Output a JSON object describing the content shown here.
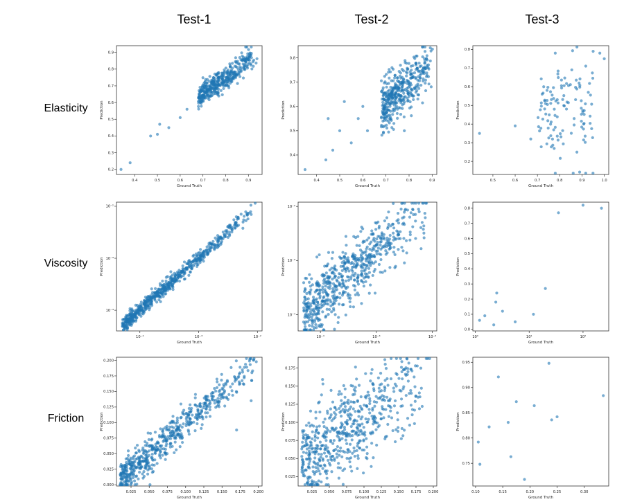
{
  "figure": {
    "columns": [
      "Test-1",
      "Test-2",
      "Test-3"
    ],
    "rows": [
      "Elasticity",
      "Viscosity",
      "Friction"
    ]
  },
  "chart_data": [
    {
      "id": "elasticity-test-1",
      "type": "scatter",
      "title": "Test-1 / Elasticity",
      "xlabel": "Ground Truth",
      "ylabel": "Prediction",
      "xscale": "linear",
      "yscale": "linear",
      "xlim": [
        0.32,
        0.96
      ],
      "ylim": [
        0.17,
        0.94
      ],
      "xticks": [
        0.4,
        0.5,
        0.6,
        0.7,
        0.8,
        0.9
      ],
      "xtick_labels": [
        "0.4",
        "0.5",
        "0.6",
        "0.7",
        "0.8",
        "0.9"
      ],
      "yticks": [
        0.2,
        0.3,
        0.4,
        0.5,
        0.6,
        0.7,
        0.8,
        0.9
      ],
      "ytick_labels": [
        "0.2",
        "0.3",
        "0.4",
        "0.5",
        "0.6",
        "0.7",
        "0.8",
        "0.9"
      ],
      "color": "#1f77b4",
      "explicit_points": [
        [
          0.34,
          0.2
        ],
        [
          0.38,
          0.24
        ],
        [
          0.47,
          0.4
        ],
        [
          0.5,
          0.41
        ],
        [
          0.51,
          0.47
        ],
        [
          0.55,
          0.45
        ],
        [
          0.6,
          0.51
        ],
        [
          0.63,
          0.56
        ]
      ],
      "generated": {
        "n": 420,
        "x_range": [
          0.68,
          0.94
        ],
        "slope": 1.0,
        "intercept": -0.05,
        "noise": 0.035,
        "seed": 11
      }
    },
    {
      "id": "elasticity-test-2",
      "type": "scatter",
      "title": "Test-2 / Elasticity",
      "xlabel": "Ground Truth",
      "ylabel": "Prediction",
      "xscale": "linear",
      "yscale": "linear",
      "xlim": [
        0.32,
        0.92
      ],
      "ylim": [
        0.32,
        0.85
      ],
      "xticks": [
        0.4,
        0.5,
        0.6,
        0.7,
        0.8,
        0.9
      ],
      "xtick_labels": [
        "0.4",
        "0.5",
        "0.6",
        "0.7",
        "0.8",
        "0.9"
      ],
      "yticks": [
        0.4,
        0.5,
        0.6,
        0.7,
        0.8
      ],
      "ytick_labels": [
        "0.4",
        "0.5",
        "0.6",
        "0.7",
        "0.8"
      ],
      "color": "#1f77b4",
      "explicit_points": [
        [
          0.35,
          0.34
        ],
        [
          0.44,
          0.38
        ],
        [
          0.47,
          0.42
        ],
        [
          0.45,
          0.55
        ],
        [
          0.52,
          0.62
        ],
        [
          0.5,
          0.5
        ],
        [
          0.55,
          0.45
        ],
        [
          0.6,
          0.6
        ],
        [
          0.58,
          0.55
        ],
        [
          0.62,
          0.5
        ]
      ],
      "generated": {
        "n": 420,
        "x_range": [
          0.68,
          0.91
        ],
        "slope": 0.9,
        "intercept": -0.02,
        "noise": 0.05,
        "seed": 23
      }
    },
    {
      "id": "elasticity-test-3",
      "type": "scatter",
      "title": "Test-3 / Elasticity",
      "xlabel": "Ground Truth",
      "ylabel": "Prediction",
      "xscale": "linear",
      "yscale": "linear",
      "xlim": [
        0.41,
        1.02
      ],
      "ylim": [
        0.13,
        0.82
      ],
      "xticks": [
        0.5,
        0.6,
        0.7,
        0.8,
        0.9,
        1.0
      ],
      "xtick_labels": [
        "0.5",
        "0.6",
        "0.7",
        "0.8",
        "0.9",
        "1.0"
      ],
      "yticks": [
        0.2,
        0.3,
        0.4,
        0.5,
        0.6,
        0.7,
        0.8
      ],
      "ytick_labels": [
        "0.2",
        "0.3",
        "0.4",
        "0.5",
        "0.6",
        "0.7",
        "0.8"
      ],
      "color": "#1f77b4",
      "explicit_points": [
        [
          0.44,
          0.35
        ],
        [
          0.6,
          0.39
        ],
        [
          0.67,
          0.32
        ],
        [
          0.95,
          0.79
        ],
        [
          0.98,
          0.78
        ],
        [
          1.0,
          0.75
        ],
        [
          0.78,
          0.78
        ]
      ],
      "generated": {
        "n": 120,
        "x_range": [
          0.7,
          0.95
        ],
        "slope": 0.0,
        "intercept": 0.45,
        "noise": 0.15,
        "seed": 37
      }
    },
    {
      "id": "viscosity-test-1",
      "type": "scatter",
      "title": "Test-1 / Viscosity",
      "xlabel": "Ground Truth",
      "ylabel": "Prediction",
      "xscale": "log",
      "yscale": "log",
      "xlim": [
        4e-05,
        0.012
      ],
      "ylim": [
        4e-05,
        0.012
      ],
      "xticks": [
        0.0001,
        0.001,
        0.01
      ],
      "xtick_labels": [
        "10⁻⁴",
        "10⁻³",
        "10⁻²"
      ],
      "yticks": [
        0.0001,
        0.001,
        0.01
      ],
      "ytick_labels": [
        "10⁻⁴",
        "10⁻³",
        "10⁻²"
      ],
      "color": "#1f77b4",
      "explicit_points": [],
      "generated": {
        "n": 650,
        "logx_range": [
          -4.3,
          -2.0
        ],
        "slope": 1.0,
        "intercept": 0.0,
        "noise": 0.07,
        "skew": 0.6,
        "seed": 41
      }
    },
    {
      "id": "viscosity-test-2",
      "type": "scatter",
      "title": "Test-2 / Viscosity",
      "xlabel": "Ground Truth",
      "ylabel": "Prediction",
      "xscale": "log",
      "yscale": "log",
      "xlim": [
        4e-05,
        0.012
      ],
      "ylim": [
        5e-05,
        0.012
      ],
      "xticks": [
        0.0001,
        0.001,
        0.01
      ],
      "xtick_labels": [
        "10⁻⁴",
        "10⁻³",
        "10⁻²"
      ],
      "yticks": [
        0.0001,
        0.001,
        0.01
      ],
      "ytick_labels": [
        "10⁻⁴",
        "10⁻³",
        "10⁻²"
      ],
      "color": "#1f77b4",
      "explicit_points": [
        [
          6e-05,
          0.0001
        ],
        [
          8e-05,
          8e-05
        ],
        [
          7e-05,
          9e-05
        ]
      ],
      "generated": {
        "n": 650,
        "logx_range": [
          -4.3,
          -2.0
        ],
        "slope": 0.9,
        "intercept": -0.1,
        "noise": 0.3,
        "skew": 0.6,
        "seed": 53
      }
    },
    {
      "id": "viscosity-test-3",
      "type": "scatter",
      "title": "Test-3 / Viscosity",
      "xlabel": "Ground Truth",
      "ylabel": "Prediction",
      "xscale": "log",
      "yscale": "linear",
      "xlim": [
        0.9,
        300
      ],
      "ylim": [
        -0.01,
        0.84
      ],
      "xticks": [
        1,
        10,
        100
      ],
      "xtick_labels": [
        "10⁰",
        "10¹",
        "10²"
      ],
      "yticks": [
        0.0,
        0.1,
        0.2,
        0.3,
        0.4,
        0.5,
        0.6,
        0.7,
        0.8
      ],
      "ytick_labels": [
        "0.0",
        "0.1",
        "0.2",
        "0.3",
        "0.4",
        "0.5",
        "0.6",
        "0.7",
        "0.8"
      ],
      "color": "#1f77b4",
      "explicit_points": [
        [
          1.2,
          0.06
        ],
        [
          1.5,
          0.09
        ],
        [
          2.2,
          0.03
        ],
        [
          2.4,
          0.18
        ],
        [
          2.5,
          0.24
        ],
        [
          3.2,
          0.12
        ],
        [
          5.5,
          0.05
        ],
        [
          12,
          0.1
        ],
        [
          20,
          0.27
        ],
        [
          35,
          0.77
        ],
        [
          100,
          0.82
        ],
        [
          220,
          0.8
        ]
      ]
    },
    {
      "id": "friction-test-1",
      "type": "scatter",
      "title": "Test-1 / Friction",
      "xlabel": "Ground Truth",
      "ylabel": "Prediction",
      "xscale": "linear",
      "yscale": "linear",
      "xlim": [
        0.005,
        0.205
      ],
      "ylim": [
        -0.002,
        0.205
      ],
      "xticks": [
        0.025,
        0.05,
        0.075,
        0.1,
        0.125,
        0.15,
        0.175,
        0.2
      ],
      "xtick_labels": [
        "0.025",
        "0.050",
        "0.075",
        "0.100",
        "0.125",
        "0.150",
        "0.175",
        "0.200"
      ],
      "yticks": [
        0.0,
        0.025,
        0.05,
        0.075,
        0.1,
        0.125,
        0.15,
        0.175,
        0.2
      ],
      "ytick_labels": [
        "0.000",
        "0.025",
        "0.050",
        "0.075",
        "0.100",
        "0.125",
        "0.150",
        "0.175",
        "0.200"
      ],
      "color": "#1f77b4",
      "explicit_points": [
        [
          0.17,
          0.088
        ],
        [
          0.19,
          0.135
        ]
      ],
      "generated": {
        "n": 600,
        "x_range": [
          0.01,
          0.2
        ],
        "slope": 1.0,
        "intercept": 0.0,
        "noise": 0.014,
        "seed": 61
      }
    },
    {
      "id": "friction-test-2",
      "type": "scatter",
      "title": "Test-2 / Friction",
      "xlabel": "Ground Truth",
      "ylabel": "Prediction",
      "xscale": "linear",
      "yscale": "linear",
      "xlim": [
        0.005,
        0.205
      ],
      "ylim": [
        0.012,
        0.19
      ],
      "xticks": [
        0.025,
        0.05,
        0.075,
        0.1,
        0.125,
        0.15,
        0.175,
        0.2
      ],
      "xtick_labels": [
        "0.025",
        "0.050",
        "0.075",
        "0.100",
        "0.125",
        "0.150",
        "0.175",
        "0.200"
      ],
      "yticks": [
        0.025,
        0.05,
        0.075,
        0.1,
        0.125,
        0.15,
        0.175
      ],
      "ytick_labels": [
        "0.025",
        "0.050",
        "0.075",
        "0.100",
        "0.125",
        "0.150",
        "0.175"
      ],
      "color": "#1f77b4",
      "explicit_points": [],
      "generated": {
        "n": 600,
        "x_range": [
          0.01,
          0.2
        ],
        "slope": 0.65,
        "intercept": 0.04,
        "noise": 0.03,
        "seed": 79
      }
    },
    {
      "id": "friction-test-3",
      "type": "scatter",
      "title": "Test-3 / Friction",
      "xlabel": "Ground Truth",
      "ylabel": "Prediction",
      "xscale": "linear",
      "yscale": "linear",
      "xlim": [
        0.095,
        0.345
      ],
      "ylim": [
        0.705,
        0.96
      ],
      "xticks": [
        0.1,
        0.15,
        0.2,
        0.25,
        0.3
      ],
      "xtick_labels": [
        "0.10",
        "0.15",
        "0.20",
        "0.25",
        "0.30"
      ],
      "yticks": [
        0.75,
        0.8,
        0.85,
        0.9,
        0.95
      ],
      "ytick_labels": [
        "0.75",
        "0.80",
        "0.85",
        "0.90",
        "0.95"
      ],
      "color": "#1f77b4",
      "explicit_points": [
        [
          0.105,
          0.792
        ],
        [
          0.108,
          0.748
        ],
        [
          0.125,
          0.822
        ],
        [
          0.142,
          0.921
        ],
        [
          0.16,
          0.831
        ],
        [
          0.165,
          0.763
        ],
        [
          0.175,
          0.872
        ],
        [
          0.19,
          0.718
        ],
        [
          0.208,
          0.864
        ],
        [
          0.235,
          0.948
        ],
        [
          0.24,
          0.836
        ],
        [
          0.25,
          0.842
        ],
        [
          0.335,
          0.884
        ]
      ]
    }
  ]
}
